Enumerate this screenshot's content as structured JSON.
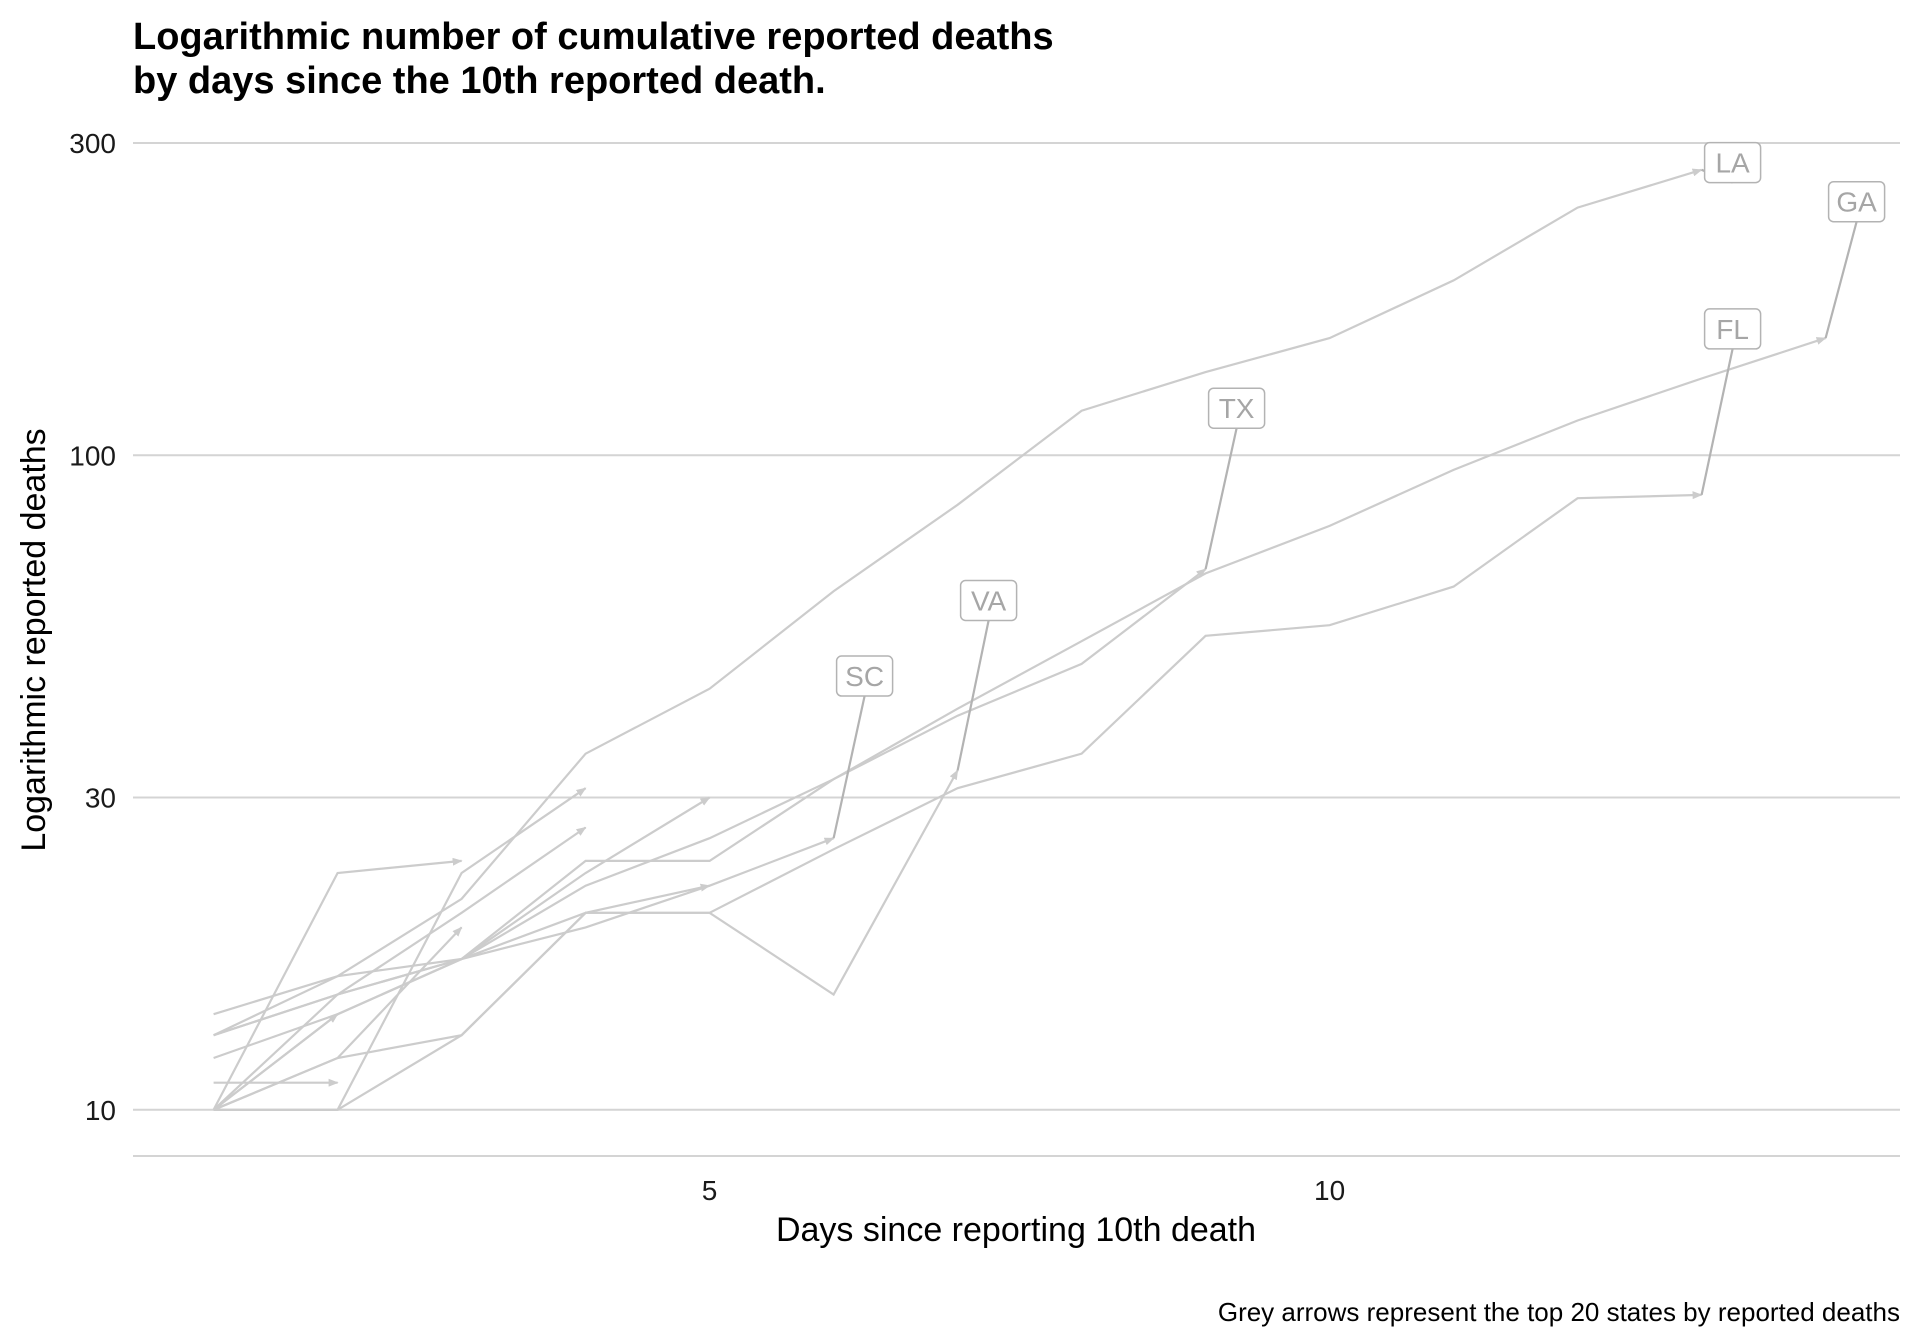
{
  "chart_data": {
    "type": "line",
    "title": "Logarithmic number of cumulative reported deaths\nby days since the 10th reported death.",
    "xlabel": "Days since reporting 10th death",
    "ylabel": "Logarithmic reported deaths",
    "caption": "Grey arrows represent the top 20 states by reported deaths",
    "y_scale": "log10",
    "xlim": [
      0.35,
      14.6
    ],
    "ylim": [
      8.5,
      300
    ],
    "x_ticks": [
      5,
      10
    ],
    "y_ticks": [
      10,
      30,
      100,
      300
    ],
    "grid": "horizontal",
    "legend": "none",
    "colors": {
      "line": "#cccccc",
      "leader": "#b3b3b3",
      "label_text": "#a6a6a6",
      "label_border": "#b3b3b3"
    },
    "series": [
      {
        "name": "LA",
        "x": [
          1,
          2,
          3,
          4,
          5,
          6,
          7,
          8,
          9,
          10,
          11,
          12,
          13
        ],
        "y": [
          13,
          16,
          21,
          35,
          44,
          62,
          84,
          117,
          134,
          151,
          185,
          239,
          273
        ]
      },
      {
        "name": "GA",
        "x": [
          1,
          2,
          3,
          4,
          5,
          6,
          7,
          8,
          9,
          10,
          11,
          12,
          13,
          14
        ],
        "y": [
          10,
          14,
          17,
          22,
          26,
          32,
          41,
          52,
          66,
          78,
          95,
          113,
          131,
          151
        ]
      },
      {
        "name": "FL",
        "x": [
          1,
          2,
          3,
          4,
          5,
          6,
          7,
          8,
          9,
          10,
          11,
          12,
          13
        ],
        "y": [
          10,
          10,
          13,
          20,
          20,
          25,
          31,
          35,
          53,
          55,
          63,
          86,
          87
        ]
      },
      {
        "name": "TX",
        "x": [
          1,
          2,
          3,
          4,
          5,
          6,
          7,
          8,
          9
        ],
        "y": [
          10,
          15,
          17,
          24,
          24,
          32,
          40,
          48,
          67
        ]
      },
      {
        "name": "VA",
        "x": [
          1,
          2,
          3,
          4,
          5,
          6,
          7
        ],
        "y": [
          10,
          12,
          13,
          20,
          20,
          15,
          33
        ]
      },
      {
        "name": "SC",
        "x": [
          1,
          2,
          3,
          4,
          5,
          6
        ],
        "y": [
          14,
          16,
          17,
          19,
          22,
          26
        ]
      },
      {
        "name": "",
        "x": [
          1,
          2,
          3
        ],
        "y": [
          10,
          23,
          24
        ]
      },
      {
        "name": "",
        "x": [
          1,
          2,
          3,
          4
        ],
        "y": [
          10,
          10,
          23,
          31
        ]
      },
      {
        "name": "",
        "x": [
          1,
          2,
          3,
          4
        ],
        "y": [
          13,
          15,
          20,
          27
        ]
      },
      {
        "name": "",
        "x": [
          1,
          2,
          3,
          4,
          5
        ],
        "y": [
          13,
          15,
          17,
          20,
          22
        ]
      },
      {
        "name": "",
        "x": [
          1,
          2,
          3,
          4,
          5
        ],
        "y": [
          12,
          14,
          17,
          23,
          30
        ]
      },
      {
        "name": "",
        "x": [
          1,
          2
        ],
        "y": [
          11,
          11
        ]
      },
      {
        "name": "",
        "x": [
          1,
          2,
          3
        ],
        "y": [
          10,
          12,
          19
        ]
      },
      {
        "name": "",
        "x": [
          1,
          2
        ],
        "y": [
          10,
          14
        ]
      }
    ],
    "annotations": [
      {
        "label": "LA",
        "series": "LA",
        "x": 13.25,
        "y": 280
      },
      {
        "label": "GA",
        "series": "GA",
        "x": 14.25,
        "y": 244
      },
      {
        "label": "FL",
        "series": "FL",
        "x": 13.25,
        "y": 156
      },
      {
        "label": "TX",
        "series": "TX",
        "x": 9.25,
        "y": 118
      },
      {
        "label": "VA",
        "series": "VA",
        "x": 7.25,
        "y": 60
      },
      {
        "label": "SC",
        "series": "SC",
        "x": 6.25,
        "y": 46
      }
    ]
  }
}
